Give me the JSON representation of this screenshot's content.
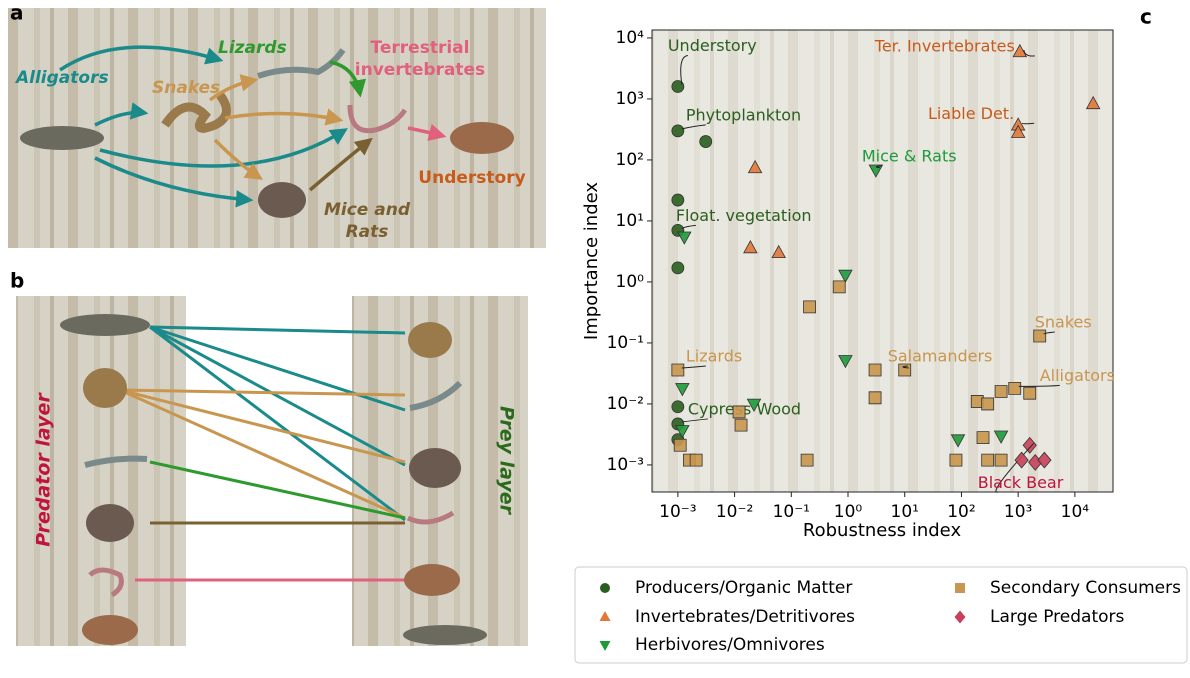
{
  "panel_labels": [
    "a",
    "b",
    "c"
  ],
  "food_web": {
    "alligators": "Alligators",
    "snakes": "Snakes",
    "lizards": "Lizards",
    "invertebrates": [
      "Terrestrial",
      "invertebrates"
    ],
    "understory": "Understory",
    "mice_rats": [
      "Mice and",
      "Rats"
    ]
  },
  "multilayer": {
    "predator_layer": "Predator layer",
    "prey_layer": "Prey layer"
  },
  "chart_data": {
    "type": "scatter",
    "xlabel": "Robustness index",
    "ylabel": "Importance index",
    "xscale": "log",
    "yscale": "log",
    "xlim": [
      0.00035,
      47000
    ],
    "ylim": [
      0.00036,
      13500
    ],
    "xticks": [
      {
        "value": 0.001,
        "label": "10⁻³"
      },
      {
        "value": 0.01,
        "label": "10⁻²"
      },
      {
        "value": 0.1,
        "label": "10⁻¹"
      },
      {
        "value": 1,
        "label": "10⁰"
      },
      {
        "value": 10,
        "label": "10¹"
      },
      {
        "value": 100,
        "label": "10²"
      },
      {
        "value": 1000,
        "label": "10³"
      },
      {
        "value": 10000,
        "label": "10⁴"
      }
    ],
    "yticks": [
      {
        "value": 0.001,
        "label": "10⁻³"
      },
      {
        "value": 0.01,
        "label": "10⁻²"
      },
      {
        "value": 0.1,
        "label": "10⁻¹"
      },
      {
        "value": 1,
        "label": "10⁰"
      },
      {
        "value": 10,
        "label": "10¹"
      },
      {
        "value": 100,
        "label": "10²"
      },
      {
        "value": 1000,
        "label": "10³"
      },
      {
        "value": 10000,
        "label": "10⁴"
      }
    ],
    "legend": "bottom",
    "series": [
      {
        "name": "Producers/Organic Matter",
        "color": "#2a5e1e",
        "marker": "circle",
        "x": [
          0.001,
          0.001,
          0.0031,
          0.001,
          0.001,
          0.001,
          0.001,
          0.001,
          0.001
        ],
        "values": [
          1600,
          300,
          200,
          22,
          7,
          1.7,
          0.009,
          0.0047,
          0.0026
        ],
        "point_labels": [
          "Understory",
          "Phytoplankton",
          null,
          null,
          "Float. vegetation",
          null,
          null,
          "Cypress Wood",
          null
        ]
      },
      {
        "name": "Invertebrates/Detritivores",
        "color": "#e07838",
        "marker": "triangle-up",
        "x": [
          1070,
          21000,
          1000,
          1000,
          0.023,
          0.019,
          0.06
        ],
        "values": [
          5900,
          830,
          370,
          280,
          74,
          3.6,
          3
        ],
        "point_labels": [
          "Ter. Invertebrates",
          null,
          "Liable Det.",
          null,
          null,
          null,
          null
        ]
      },
      {
        "name": "Herbivores/Omnivores",
        "color": "#1e9a3a",
        "marker": "triangle-down",
        "x": [
          3.1,
          0.0013,
          0.9,
          0.9,
          0.0012,
          0.022,
          0.0012,
          87,
          500
        ],
        "values": [
          69,
          5.5,
          1.3,
          0.052,
          0.018,
          0.01,
          0.0037,
          0.0026,
          0.003
        ],
        "point_labels": [
          "Mice & Rats",
          null,
          null,
          null,
          null,
          null,
          null,
          null,
          null
        ]
      },
      {
        "name": "Secondary Consumers",
        "color": "#c8964e",
        "marker": "square",
        "x": [
          2400,
          0.001,
          10,
          3,
          3,
          0.21,
          0.7,
          870,
          500,
          1600,
          190,
          290,
          0.012,
          0.013,
          0.0011,
          0.0016,
          0.0021,
          0.19,
          80,
          290,
          500,
          240
        ],
        "values": [
          0.13,
          0.036,
          0.036,
          0.036,
          0.0126,
          0.39,
          0.83,
          0.018,
          0.016,
          0.015,
          0.011,
          0.01,
          0.0074,
          0.0045,
          0.0021,
          0.0012,
          0.0012,
          0.0012,
          0.0012,
          0.0012,
          0.0012,
          0.0028
        ],
        "point_labels": [
          "Snakes",
          "Lizards",
          "Salamanders",
          null,
          null,
          null,
          null,
          "Alligators",
          null,
          null,
          null,
          null,
          null,
          null,
          null,
          null,
          null,
          null,
          null,
          null,
          null,
          null
        ]
      },
      {
        "name": "Large Predators",
        "color": "#c8405a",
        "marker": "diamond",
        "x": [
          1600,
          1150,
          2000,
          2900
        ],
        "values": [
          0.0021,
          0.0012,
          0.0011,
          0.0012
        ],
        "point_labels": [
          "Black Bear",
          null,
          null,
          null
        ]
      }
    ]
  }
}
